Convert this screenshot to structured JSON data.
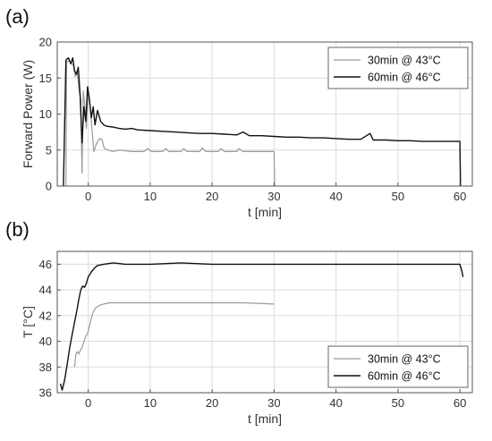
{
  "chart_data": [
    {
      "panel_label": "(a)",
      "type": "line",
      "xlabel": "t [min]",
      "ylabel": "Forward Power (W)",
      "xlim": [
        -5,
        62
      ],
      "ylim": [
        0,
        20
      ],
      "x_ticks": [
        0,
        10,
        20,
        30,
        40,
        50,
        60
      ],
      "y_ticks": [
        0,
        5,
        10,
        15,
        20
      ],
      "grid": true,
      "legend_position": "top-right",
      "series": [
        {
          "name": "30min @ 43°C",
          "color": "#9a9a9a",
          "points": [
            [
              -3.6,
              0
            ],
            [
              -3.5,
              17.2
            ],
            [
              -3.1,
              17.4
            ],
            [
              -2.7,
              17.0
            ],
            [
              -2.4,
              16.8
            ],
            [
              -2.1,
              15.2
            ],
            [
              -1.8,
              16.0
            ],
            [
              -1.5,
              13.5
            ],
            [
              -1.2,
              12.0
            ],
            [
              -1.0,
              1.8
            ],
            [
              -0.8,
              13.2
            ],
            [
              -0.6,
              11.5
            ],
            [
              -0.3,
              8.0
            ],
            [
              0.0,
              13.0
            ],
            [
              0.2,
              12.2
            ],
            [
              0.5,
              9.0
            ],
            [
              0.9,
              4.8
            ],
            [
              1.3,
              5.8
            ],
            [
              1.8,
              6.6
            ],
            [
              2.2,
              6.5
            ],
            [
              2.6,
              5.2
            ],
            [
              3.2,
              5.0
            ],
            [
              4.0,
              4.8
            ],
            [
              5.0,
              5.0
            ],
            [
              7.0,
              4.8
            ],
            [
              9.0,
              4.8
            ],
            [
              9.6,
              5.2
            ],
            [
              10.2,
              4.8
            ],
            [
              12.0,
              4.8
            ],
            [
              12.5,
              5.2
            ],
            [
              13.0,
              4.8
            ],
            [
              15.0,
              4.8
            ],
            [
              15.4,
              5.2
            ],
            [
              16.0,
              4.8
            ],
            [
              18.0,
              4.8
            ],
            [
              18.4,
              5.3
            ],
            [
              19.0,
              4.8
            ],
            [
              21.0,
              4.8
            ],
            [
              21.4,
              5.2
            ],
            [
              22.0,
              4.8
            ],
            [
              24.0,
              4.8
            ],
            [
              24.3,
              5.2
            ],
            [
              25.0,
              4.8
            ],
            [
              27.0,
              4.8
            ],
            [
              28.0,
              4.8
            ],
            [
              30.0,
              4.8
            ],
            [
              30.1,
              0
            ]
          ]
        },
        {
          "name": "60min @ 46°C",
          "color": "#111111",
          "points": [
            [
              -4.0,
              0
            ],
            [
              -3.6,
              17.5
            ],
            [
              -3.2,
              17.8
            ],
            [
              -2.8,
              17.0
            ],
            [
              -2.5,
              17.8
            ],
            [
              -2.2,
              16.0
            ],
            [
              -1.9,
              15.5
            ],
            [
              -1.6,
              16.5
            ],
            [
              -1.3,
              12.5
            ],
            [
              -1.0,
              6.0
            ],
            [
              -0.7,
              11.0
            ],
            [
              -0.4,
              9.0
            ],
            [
              -0.1,
              13.8
            ],
            [
              0.2,
              12.0
            ],
            [
              0.5,
              9.5
            ],
            [
              0.8,
              11.0
            ],
            [
              1.1,
              8.5
            ],
            [
              1.5,
              10.5
            ],
            [
              2.0,
              9.0
            ],
            [
              2.5,
              8.5
            ],
            [
              3.0,
              8.3
            ],
            [
              4.0,
              8.2
            ],
            [
              5.0,
              8.0
            ],
            [
              6.0,
              7.9
            ],
            [
              7.0,
              8.0
            ],
            [
              8.0,
              7.8
            ],
            [
              10.0,
              7.7
            ],
            [
              12.0,
              7.6
            ],
            [
              14.0,
              7.5
            ],
            [
              16.0,
              7.4
            ],
            [
              18.0,
              7.3
            ],
            [
              20.0,
              7.3
            ],
            [
              22.0,
              7.2
            ],
            [
              24.0,
              7.1
            ],
            [
              25.0,
              7.5
            ],
            [
              26.0,
              7.0
            ],
            [
              28.0,
              7.0
            ],
            [
              30.0,
              6.9
            ],
            [
              32.0,
              6.8
            ],
            [
              34.0,
              6.8
            ],
            [
              36.0,
              6.7
            ],
            [
              38.0,
              6.7
            ],
            [
              40.0,
              6.6
            ],
            [
              42.0,
              6.5
            ],
            [
              44.0,
              6.5
            ],
            [
              45.5,
              7.3
            ],
            [
              46.0,
              6.4
            ],
            [
              48.0,
              6.4
            ],
            [
              50.0,
              6.3
            ],
            [
              52.0,
              6.3
            ],
            [
              54.0,
              6.2
            ],
            [
              56.0,
              6.2
            ],
            [
              58.0,
              6.2
            ],
            [
              60.0,
              6.2
            ],
            [
              60.1,
              0
            ]
          ]
        }
      ]
    },
    {
      "panel_label": "(b)",
      "type": "line",
      "xlabel": "t [min]",
      "ylabel": "T [°C]",
      "xlim": [
        -5,
        62
      ],
      "ylim": [
        36,
        47
      ],
      "x_ticks": [
        0,
        10,
        20,
        30,
        40,
        50,
        60
      ],
      "y_ticks": [
        36,
        38,
        40,
        42,
        44,
        46
      ],
      "grid": true,
      "legend_position": "bottom-right",
      "series": [
        {
          "name": "30min @ 43°C",
          "color": "#9a9a9a",
          "points": [
            [
              -2.2,
              38.0
            ],
            [
              -2.0,
              39.0
            ],
            [
              -1.8,
              39.2
            ],
            [
              -1.5,
              39.0
            ],
            [
              -1.3,
              39.3
            ],
            [
              -1.0,
              39.5
            ],
            [
              -0.7,
              40.0
            ],
            [
              -0.4,
              40.4
            ],
            [
              -0.1,
              40.6
            ],
            [
              0.2,
              41.2
            ],
            [
              0.5,
              41.8
            ],
            [
              0.8,
              42.3
            ],
            [
              1.2,
              42.6
            ],
            [
              1.8,
              42.8
            ],
            [
              2.5,
              42.9
            ],
            [
              3.5,
              43.0
            ],
            [
              5.0,
              43.0
            ],
            [
              10.0,
              43.0
            ],
            [
              15.0,
              43.0
            ],
            [
              20.0,
              43.0
            ],
            [
              25.0,
              43.0
            ],
            [
              30.0,
              42.9
            ]
          ]
        },
        {
          "name": "60min @ 46°C",
          "color": "#111111",
          "points": [
            [
              -4.5,
              36.7
            ],
            [
              -4.2,
              36.2
            ],
            [
              -3.8,
              37.0
            ],
            [
              -3.4,
              38.2
            ],
            [
              -3.0,
              39.5
            ],
            [
              -2.6,
              40.5
            ],
            [
              -2.2,
              41.5
            ],
            [
              -1.8,
              42.5
            ],
            [
              -1.5,
              43.3
            ],
            [
              -1.2,
              44.0
            ],
            [
              -0.9,
              44.3
            ],
            [
              -0.6,
              44.2
            ],
            [
              -0.3,
              44.5
            ],
            [
              0.0,
              45.0
            ],
            [
              0.5,
              45.4
            ],
            [
              1.0,
              45.7
            ],
            [
              1.5,
              45.9
            ],
            [
              2.5,
              46.0
            ],
            [
              4.0,
              46.1
            ],
            [
              6.0,
              46.0
            ],
            [
              10.0,
              46.0
            ],
            [
              15.0,
              46.1
            ],
            [
              20.0,
              46.0
            ],
            [
              25.0,
              46.0
            ],
            [
              30.0,
              46.0
            ],
            [
              35.0,
              46.0
            ],
            [
              40.0,
              46.0
            ],
            [
              45.0,
              46.0
            ],
            [
              50.0,
              46.0
            ],
            [
              55.0,
              46.0
            ],
            [
              60.0,
              46.0
            ],
            [
              60.3,
              45.5
            ],
            [
              60.5,
              45.0
            ]
          ]
        }
      ]
    }
  ]
}
